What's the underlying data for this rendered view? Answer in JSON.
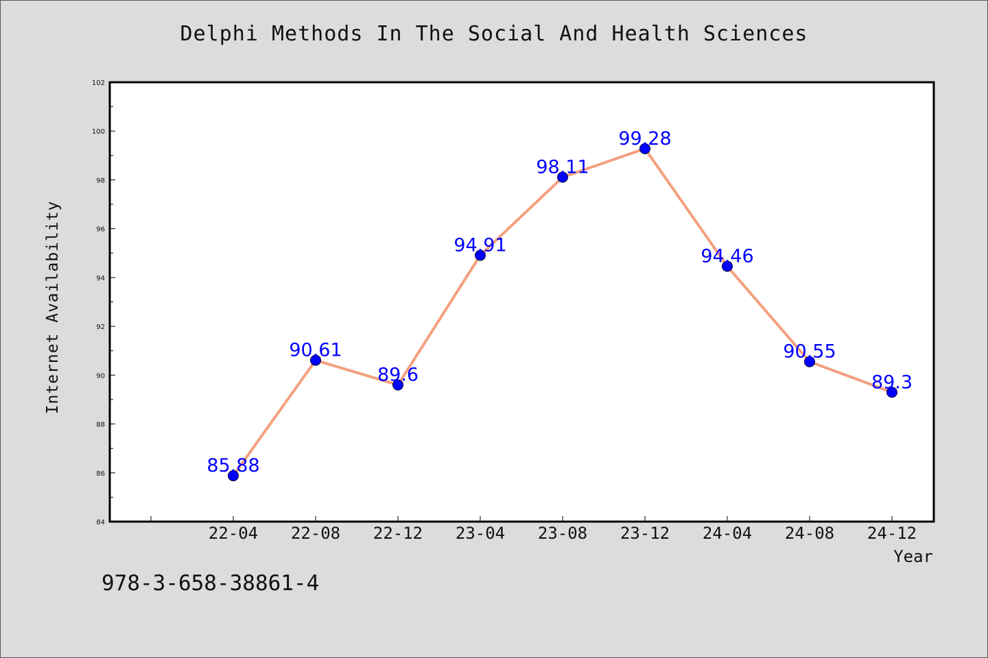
{
  "chart_data": {
    "type": "line",
    "title": "Delphi Methods In The Social And Health Sciences",
    "xlabel": "Year",
    "ylabel": "Internet Availability",
    "categories": [
      "22-04",
      "22-08",
      "22-12",
      "23-04",
      "23-08",
      "23-12",
      "24-04",
      "24-08",
      "24-12"
    ],
    "series": [
      {
        "values": [
          85.88,
          90.61,
          89.6,
          94.91,
          98.11,
          99.28,
          94.46,
          90.55,
          89.3
        ],
        "labels": [
          "85.88",
          "90.61",
          "89.6",
          "94.91",
          "98.11",
          "99.28",
          "94.46",
          "90.55",
          "89.3"
        ]
      }
    ],
    "ylim": [
      84,
      102
    ],
    "yticks": [
      "84",
      "86",
      "88",
      "90",
      "92",
      "94",
      "96",
      "98",
      "100",
      "102"
    ],
    "grid": false,
    "line_color": "#f4a07f",
    "marker_color": "#0000ff",
    "label_color": "#0000ff"
  },
  "footer": {
    "isbn": "978-3-658-38861-4"
  }
}
